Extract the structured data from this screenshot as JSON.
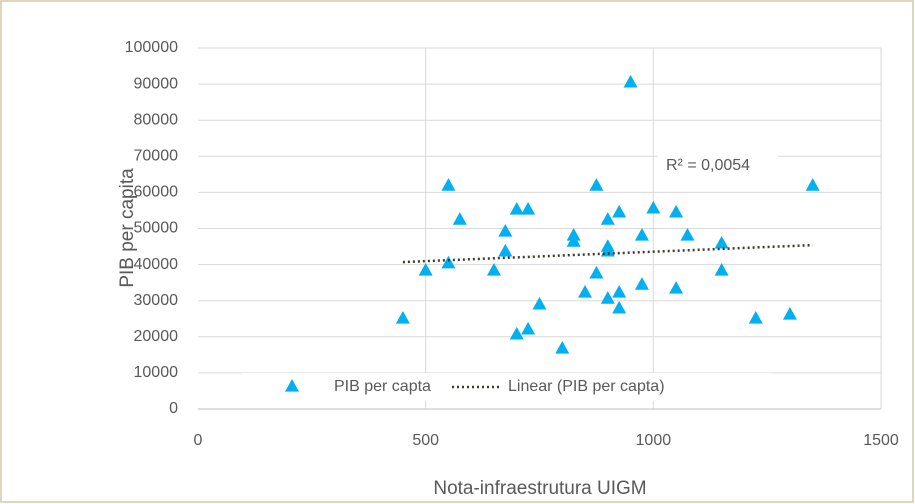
{
  "chart_data": {
    "type": "scatter",
    "x_label": "Nota-infraestrutura UIGM",
    "y_label": "PIB per capita",
    "annotation": "R² = 0,0054",
    "xlim": [
      0,
      1500
    ],
    "xticks": [
      0,
      500,
      1000,
      1500
    ],
    "ylim": [
      0,
      100000
    ],
    "yticks": [
      0,
      10000,
      20000,
      30000,
      40000,
      50000,
      60000,
      70000,
      80000,
      90000,
      100000
    ],
    "grid": true,
    "legend": "bottom",
    "series": [
      {
        "name": "PIB per capta",
        "color": "#00b0f0",
        "x": [
          450,
          500,
          550,
          550,
          575,
          650,
          675,
          675,
          700,
          700,
          725,
          725,
          750,
          800,
          825,
          825,
          850,
          875,
          875,
          900,
          900,
          900,
          900,
          925,
          925,
          925,
          950,
          975,
          975,
          1000,
          1050,
          1050,
          1075,
          1150,
          1150,
          1225,
          1300,
          1350
        ],
        "values": [
          25200,
          38500,
          62000,
          40500,
          52600,
          38500,
          49300,
          43800,
          20800,
          55400,
          55400,
          22200,
          29100,
          16900,
          48200,
          46500,
          32400,
          62000,
          37700,
          45100,
          52600,
          30700,
          43800,
          32400,
          54600,
          28000,
          90600,
          48200,
          34600,
          55700,
          54600,
          33500,
          48200,
          46000,
          38500,
          25200,
          26300,
          62000
        ]
      }
    ],
    "trendline": {
      "name": "Linear (PIB per capta)",
      "color": "#3b3b2b",
      "x": [
        450,
        1350
      ],
      "values": [
        40700,
        45400
      ]
    }
  }
}
